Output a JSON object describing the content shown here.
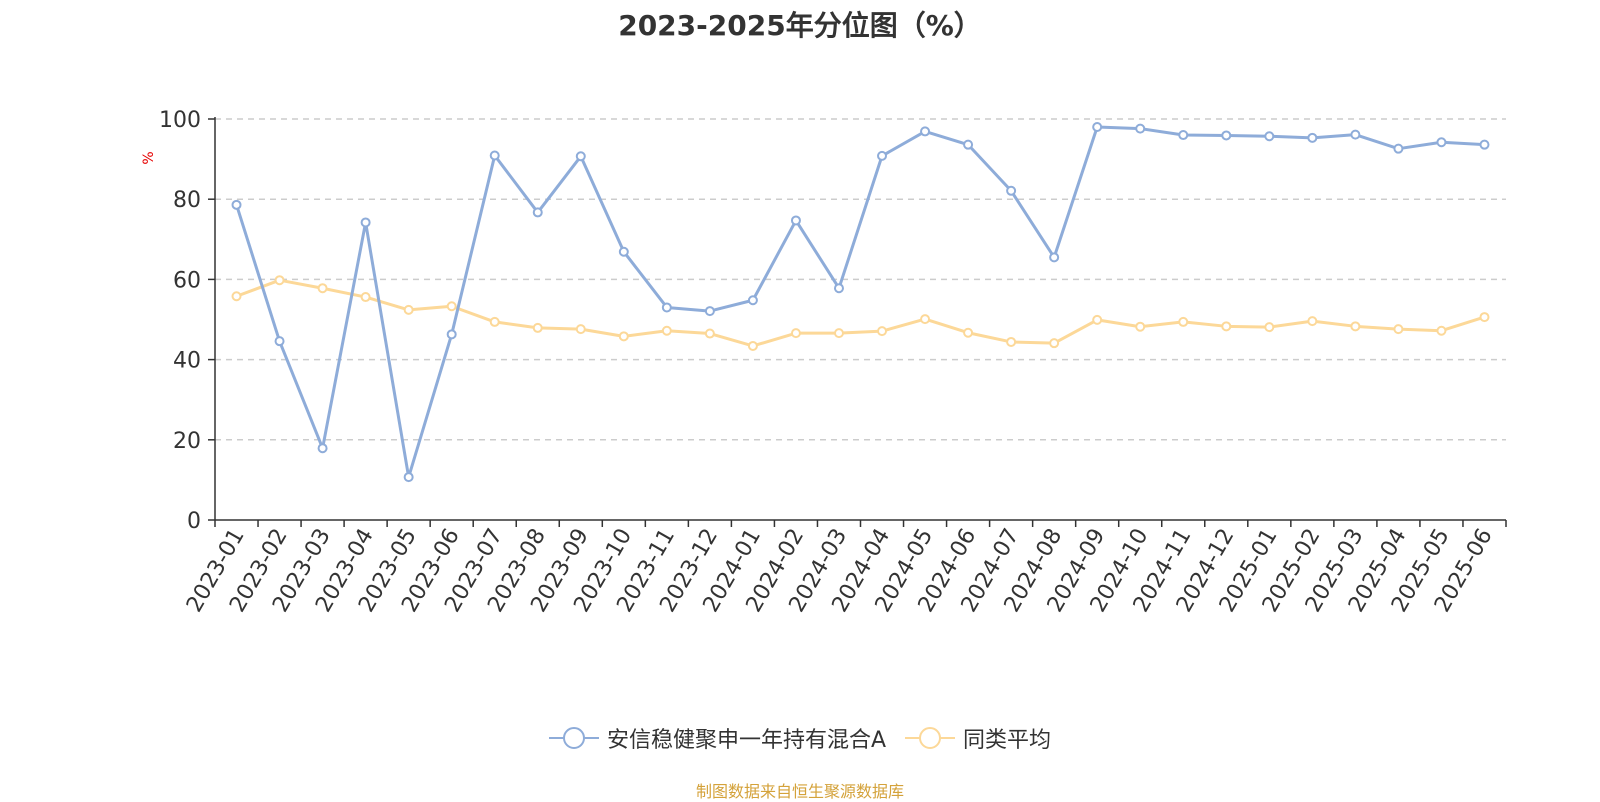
{
  "chart_data": {
    "type": "line",
    "title": "2023-2025年分位图（%）",
    "ylabel": "%",
    "xlabel": "",
    "ylim": [
      0,
      100
    ],
    "yticks": [
      0,
      20,
      40,
      60,
      80,
      100
    ],
    "grid": true,
    "legend_position": "bottom",
    "categories": [
      "2023-01",
      "2023-02",
      "2023-03",
      "2023-04",
      "2023-05",
      "2023-06",
      "2023-07",
      "2023-08",
      "2023-09",
      "2023-10",
      "2023-11",
      "2023-12",
      "2024-01",
      "2024-02",
      "2024-03",
      "2024-04",
      "2024-05",
      "2024-06",
      "2024-07",
      "2024-08",
      "2024-09",
      "2024-10",
      "2024-11",
      "2024-12",
      "2025-01",
      "2025-02",
      "2025-03",
      "2025-04",
      "2025-05",
      "2025-06"
    ],
    "series": [
      {
        "name": "安信稳健聚申一年持有混合A",
        "color": "#8eacd9",
        "values": [
          78.6,
          44.6,
          17.9,
          74.2,
          10.7,
          46.3,
          90.9,
          76.7,
          90.7,
          66.9,
          53.0,
          52.1,
          54.8,
          74.7,
          57.8,
          90.8,
          96.9,
          93.6,
          82.1,
          65.5,
          98.0,
          97.6,
          96.0,
          95.9,
          95.7,
          95.3,
          96.1,
          92.6,
          94.2,
          93.6
        ]
      },
      {
        "name": "同类平均",
        "color": "#fcd898",
        "values": [
          55.8,
          59.8,
          57.8,
          55.6,
          52.4,
          53.3,
          49.4,
          47.9,
          47.6,
          45.8,
          47.2,
          46.5,
          43.4,
          46.6,
          46.6,
          47.1,
          50.1,
          46.7,
          44.4,
          44.1,
          49.9,
          48.2,
          49.4,
          48.3,
          48.1,
          49.6,
          48.3,
          47.6,
          47.2,
          50.6
        ]
      }
    ]
  },
  "colors": {
    "axis": "#333333",
    "grid": "#cccccc",
    "ylabel": "#e60000",
    "source": "#d4a23a"
  },
  "source_text": "制图数据来自恒生聚源数据库"
}
